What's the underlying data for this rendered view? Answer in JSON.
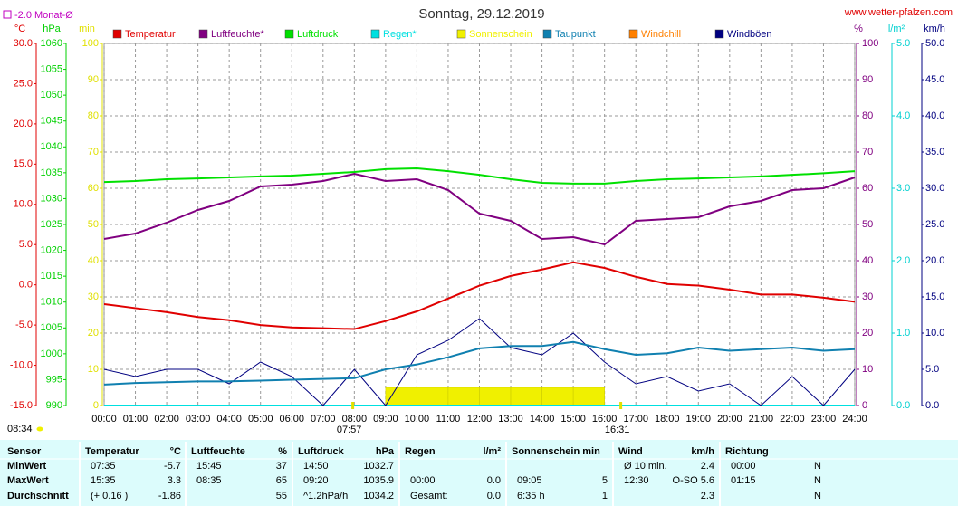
{
  "chart_data": {
    "type": "line",
    "title": "Sonntag, 29.12.2019",
    "source": "www.wetter-pfalzen.com",
    "month_avg": {
      "label": "-2.0 Monat-Ø",
      "value": -2.0,
      "color": "#c000c0",
      "axis": "y"
    },
    "day_length": "08:34",
    "sunrise": {
      "label": "07:57",
      "value": 7.95
    },
    "sunset": {
      "label": "16:31",
      "value": 16.52
    },
    "grid": true,
    "xlim": [
      0,
      24
    ],
    "xticks": [
      {
        "value": 0,
        "label": "00:00"
      },
      {
        "value": 1,
        "label": "01:00"
      },
      {
        "value": 2,
        "label": "02:00"
      },
      {
        "value": 3,
        "label": "03:00"
      },
      {
        "value": 4,
        "label": "04:00"
      },
      {
        "value": 5,
        "label": "05:00"
      },
      {
        "value": 6,
        "label": "06:00"
      },
      {
        "value": 7,
        "label": "07:00"
      },
      {
        "value": 8,
        "label": "08:00"
      },
      {
        "value": 9,
        "label": "09:00"
      },
      {
        "value": 10,
        "label": "10:00"
      },
      {
        "value": 11,
        "label": "11:00"
      },
      {
        "value": 12,
        "label": "12:00"
      },
      {
        "value": 13,
        "label": "13:00"
      },
      {
        "value": 14,
        "label": "14:00"
      },
      {
        "value": 15,
        "label": "15:00"
      },
      {
        "value": 16,
        "label": "16:00"
      },
      {
        "value": 17,
        "label": "17:00"
      },
      {
        "value": 18,
        "label": "18:00"
      },
      {
        "value": 19,
        "label": "19:00"
      },
      {
        "value": 20,
        "label": "20:00"
      },
      {
        "value": 21,
        "label": "21:00"
      },
      {
        "value": 22,
        "label": "22:00"
      },
      {
        "value": 23,
        "label": "23:00"
      },
      {
        "value": 24,
        "label": "24:00"
      }
    ],
    "axes": {
      "y": {
        "label": "°C",
        "color": "#e00000",
        "side": "left",
        "lim": [
          -15,
          30
        ],
        "ticks": [
          {
            "value": -15,
            "label": "-15.0"
          },
          {
            "value": -10,
            "label": "-10.0"
          },
          {
            "value": -5,
            "label": "-5.0"
          },
          {
            "value": 0,
            "label": "0.0"
          },
          {
            "value": 5,
            "label": "5.0"
          },
          {
            "value": 10,
            "label": "10.0"
          },
          {
            "value": 15,
            "label": "15.0"
          },
          {
            "value": 20,
            "label": "20.0"
          },
          {
            "value": 25,
            "label": "25.0"
          },
          {
            "value": 30,
            "label": "30.0"
          }
        ]
      },
      "y2": {
        "label": "hPa",
        "color": "#00d000",
        "side": "left",
        "lim": [
          990,
          1060
        ],
        "ticks": [
          990,
          995,
          1000,
          1005,
          1010,
          1015,
          1020,
          1025,
          1030,
          1035,
          1040,
          1045,
          1050,
          1055,
          1060
        ]
      },
      "y3": {
        "label": "min",
        "color": "#e0e000",
        "side": "left",
        "lim": [
          0,
          100
        ],
        "ticks": [
          0,
          10,
          20,
          30,
          40,
          50,
          60,
          70,
          80,
          90,
          100
        ]
      },
      "y4": {
        "label": "%",
        "color": "#800080",
        "side": "right",
        "lim": [
          0,
          100
        ],
        "ticks": [
          0,
          10,
          20,
          30,
          40,
          50,
          60,
          70,
          80,
          90,
          100
        ]
      },
      "y5": {
        "label": "l/m²",
        "color": "#00d0d0",
        "side": "right",
        "lim": [
          0,
          5
        ],
        "ticks": [
          {
            "value": 0,
            "label": "0.0"
          },
          {
            "value": 1,
            "label": "1.0"
          },
          {
            "value": 2,
            "label": "2.0"
          },
          {
            "value": 3,
            "label": "3.0"
          },
          {
            "value": 4,
            "label": "4.0"
          },
          {
            "value": 5,
            "label": "5.0"
          }
        ]
      },
      "y6": {
        "label": "km/h",
        "color": "#000080",
        "side": "right",
        "lim": [
          0,
          50
        ],
        "ticks": [
          {
            "value": 0,
            "label": "0.0"
          },
          {
            "value": 5,
            "label": "5.0"
          },
          {
            "value": 10,
            "label": "10.0"
          },
          {
            "value": 15,
            "label": "15.0"
          },
          {
            "value": 20,
            "label": "20.0"
          },
          {
            "value": 25,
            "label": "25.0"
          },
          {
            "value": 30,
            "label": "30.0"
          },
          {
            "value": 35,
            "label": "35.0"
          },
          {
            "value": 40,
            "label": "40.0"
          },
          {
            "value": 45,
            "label": "45.0"
          },
          {
            "value": 50,
            "label": "50.0"
          }
        ]
      }
    },
    "x": [
      0,
      1,
      2,
      3,
      4,
      5,
      6,
      7,
      8,
      9,
      10,
      11,
      12,
      13,
      14,
      15,
      16,
      17,
      18,
      19,
      20,
      21,
      22,
      23,
      24
    ],
    "series": [
      {
        "name": "Temperatur",
        "color": "#e00000",
        "axis": "y",
        "values": [
          -2.4,
          -2.9,
          -3.4,
          -4.0,
          -4.4,
          -5.0,
          -5.3,
          -5.4,
          -5.5,
          -4.5,
          -3.3,
          -1.7,
          -0.1,
          1.1,
          1.9,
          2.8,
          2.1,
          1.0,
          0.1,
          -0.1,
          -0.6,
          -1.2,
          -1.2,
          -1.6,
          -2.1
        ]
      },
      {
        "name": "Luftfeuchte*",
        "color": "#800080",
        "axis": "y4",
        "values": [
          46,
          47.5,
          50.5,
          54,
          56.5,
          60.5,
          61,
          62,
          64,
          62,
          62.5,
          59.5,
          53,
          51,
          46,
          46.5,
          44.5,
          51,
          51.5,
          52,
          55,
          56.5,
          59.5,
          60,
          63
        ]
      },
      {
        "name": "Luftdruck",
        "color": "#00e000",
        "axis": "y2",
        "values": [
          1033.2,
          1033.4,
          1033.75,
          1033.9,
          1034.1,
          1034.3,
          1034.45,
          1034.8,
          1035.15,
          1035.7,
          1035.85,
          1035.3,
          1034.6,
          1033.75,
          1033.05,
          1032.9,
          1032.9,
          1033.4,
          1033.75,
          1033.9,
          1034.1,
          1034.3,
          1034.6,
          1034.9,
          1035.3
        ]
      },
      {
        "name": "Regen*",
        "color": "#00e0e0",
        "axis": "y5",
        "values": [
          0,
          0,
          0,
          0,
          0,
          0,
          0,
          0,
          0,
          0,
          0,
          0,
          0,
          0,
          0,
          0,
          0,
          0,
          0,
          0,
          0,
          0,
          0,
          0,
          0
        ]
      },
      {
        "name": "Sonnenschein",
        "color": "#f0f000",
        "axis": "y3",
        "kind": "bar",
        "values": [
          0,
          0,
          0,
          0,
          0,
          0,
          0,
          0,
          0,
          5,
          5,
          5,
          5,
          5,
          5,
          5,
          0,
          0,
          0,
          0,
          0,
          0,
          0,
          0,
          0
        ]
      },
      {
        "name": "Taupunkt",
        "color": "#1080b0",
        "axis": "y",
        "values": [
          -12.4,
          -12.2,
          -12.1,
          -12.0,
          -12.0,
          -11.9,
          -11.8,
          -11.7,
          -11.6,
          -10.5,
          -9.9,
          -9.0,
          -7.9,
          -7.6,
          -7.6,
          -7.1,
          -8.0,
          -8.7,
          -8.5,
          -7.8,
          -8.2,
          -8.0,
          -7.8,
          -8.2,
          -8.0
        ]
      },
      {
        "name": "Windchill",
        "color": "#ff8000",
        "axis": "y"
      },
      {
        "name": "Windböen",
        "color": "#000080",
        "axis": "y6",
        "values": [
          5,
          4,
          5,
          5,
          3,
          6,
          4,
          0,
          5,
          0,
          7,
          9,
          12,
          8,
          7,
          10,
          6,
          3,
          4,
          2,
          3,
          0,
          4,
          0,
          5
        ]
      }
    ]
  },
  "table": {
    "header": {
      "sensor": "Sensor",
      "groups": [
        [
          "Temperatur",
          "°C"
        ],
        [
          "Luftfeuchte",
          "%"
        ],
        [
          "Luftdruck",
          "hPa"
        ],
        [
          "Regen",
          "l/m²"
        ],
        [
          "Sonnenschein min"
        ],
        [
          "Wind",
          "km/h"
        ],
        [
          "Richtung"
        ]
      ]
    },
    "rows": [
      {
        "label": "MinWert",
        "cells": [
          [
            "07:35",
            "-5.7"
          ],
          [
            "15:45",
            "37"
          ],
          [
            "14:50",
            "1032.7"
          ],
          null,
          null,
          [
            "Ø 10 min.",
            "2.4"
          ],
          [
            "00:00",
            "N"
          ]
        ]
      },
      {
        "label": "MaxWert",
        "cells": [
          [
            "15:35",
            "3.3"
          ],
          [
            "08:35",
            "65"
          ],
          [
            "09:20",
            "1035.9"
          ],
          [
            "00:00",
            "0.0"
          ],
          [
            "09:05",
            "5"
          ],
          [
            "12:30",
            "O-SO 5.6"
          ],
          [
            "01:15",
            "N"
          ]
        ]
      },
      {
        "label": "Durchschnitt",
        "cells": [
          [
            "(+ 0.16 )",
            "-1.86"
          ],
          [
            null,
            "55"
          ],
          [
            "^1.2hPa/h",
            "1034.2"
          ],
          [
            "Gesamt:",
            "0.0"
          ],
          [
            "6:35 h",
            "1"
          ],
          [
            null,
            "2.3"
          ],
          [
            null,
            "N"
          ]
        ]
      }
    ]
  }
}
